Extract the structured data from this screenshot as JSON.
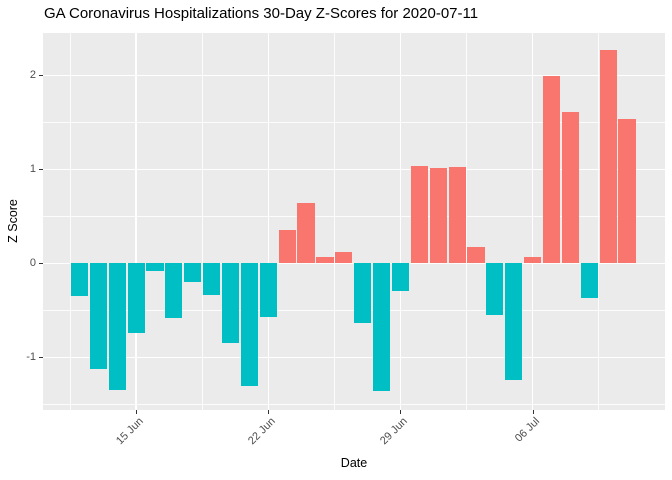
{
  "chart_data": {
    "type": "bar",
    "title": "GA Coronavirus Hospitalizations 30-Day Z-Scores for 2020-07-11",
    "xlabel": "Date",
    "ylabel": "Z Score",
    "x": [
      "2020-06-12",
      "2020-06-13",
      "2020-06-14",
      "2020-06-15",
      "2020-06-16",
      "2020-06-17",
      "2020-06-18",
      "2020-06-19",
      "2020-06-20",
      "2020-06-21",
      "2020-06-22",
      "2020-06-23",
      "2020-06-24",
      "2020-06-25",
      "2020-06-26",
      "2020-06-27",
      "2020-06-28",
      "2020-06-29",
      "2020-06-30",
      "2020-07-01",
      "2020-07-02",
      "2020-07-03",
      "2020-07-04",
      "2020-07-05",
      "2020-07-06",
      "2020-07-07",
      "2020-07-08",
      "2020-07-09",
      "2020-07-10",
      "2020-07-11"
    ],
    "values": [
      -0.35,
      -1.12,
      -1.35,
      -0.74,
      -0.08,
      -0.58,
      -0.2,
      -0.34,
      -0.85,
      -1.3,
      -0.57,
      0.35,
      0.64,
      0.07,
      0.12,
      -0.64,
      -1.36,
      -0.29,
      1.04,
      1.01,
      1.02,
      0.17,
      -0.55,
      -1.24,
      0.07,
      1.99,
      1.61,
      -0.37,
      2.27,
      1.53
    ],
    "x_ticks": [
      {
        "index": 3,
        "label": "15 Jun"
      },
      {
        "index": 10,
        "label": "22 Jun"
      },
      {
        "index": 17,
        "label": "29 Jun"
      },
      {
        "index": 24,
        "label": "06 Jul"
      }
    ],
    "x_minor_indices": [
      -0.5,
      6.5,
      13.5,
      20.5,
      27.5
    ],
    "y_ticks": [
      -1,
      0,
      1,
      2
    ],
    "y_minor": [
      -1.5,
      -0.5,
      0.5,
      1.5
    ],
    "ylim": [
      -1.56,
      2.45
    ],
    "grid": true,
    "legend": "none",
    "colors": {
      "positive": "#F8766D",
      "negative": "#00BFC4",
      "panel_bg": "#EBEBEB",
      "grid": "#FFFFFF",
      "axis_text": "#4D4D4D",
      "tick_mark": "#333333",
      "title": "#000000"
    }
  }
}
